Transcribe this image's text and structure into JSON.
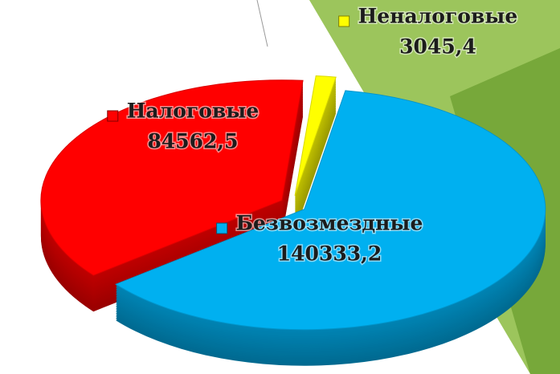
{
  "chart_data": {
    "type": "pie",
    "categories": [
      "Налоговые",
      "Неналоговые",
      "Безвозмездные"
    ],
    "values": [
      84562.5,
      3045.4,
      140333.2
    ],
    "value_labels": [
      "84562,5",
      "3045,4",
      "140333,2"
    ],
    "colors": [
      "#ff0000",
      "#ffff00",
      "#00b0f0"
    ]
  }
}
